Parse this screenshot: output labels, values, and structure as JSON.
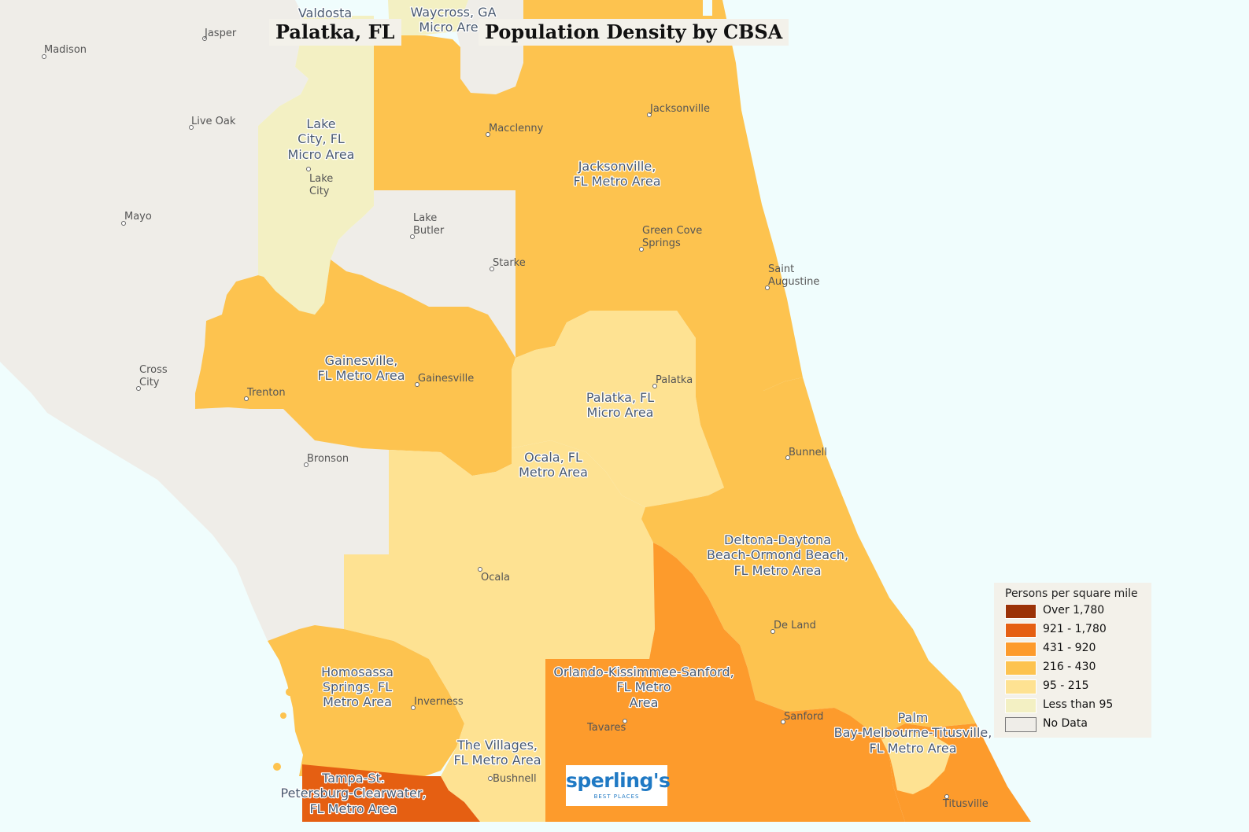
{
  "titles": {
    "location": "Palatka, FL",
    "main": "Population Density by CBSA"
  },
  "colors": {
    "water": "#f0fdfd",
    "no_data": "#efede8",
    "lt95": "#f3f0c3",
    "c95_215": "#fee292",
    "c216_430": "#fdc34f",
    "c431_920": "#fd9b2c",
    "c921_1780": "#e55f12",
    "over1780": "#9b3207"
  },
  "legend": {
    "title": "Persons per square mile",
    "items": [
      {
        "label": "Over 1,780",
        "color": "#9b3207"
      },
      {
        "label": "921 - 1,780",
        "color": "#e55f12"
      },
      {
        "label": "431 - 920",
        "color": "#fd9b2c"
      },
      {
        "label": "216 - 430",
        "color": "#fdc34f"
      },
      {
        "label": "95 - 215",
        "color": "#fee292"
      },
      {
        "label": "Less than 95",
        "color": "#f3f0c3"
      },
      {
        "label": "No Data",
        "color": "#efede8"
      }
    ]
  },
  "regions": {
    "valdosta": "Valdosta",
    "waycross_1": "Waycross, GA",
    "waycross_2": "Micro Are",
    "lake_city_1": "Lake",
    "lake_city_2": "City, FL",
    "lake_city_3": "Micro Area",
    "jacksonville_1": "Jacksonville,",
    "jacksonville_2": "FL Metro Area",
    "gainesville_1": "Gainesville,",
    "gainesville_2": "FL Metro Area",
    "palatka_1": "Palatka, FL",
    "palatka_2": "Micro Area",
    "ocala_1": "Ocala, FL",
    "ocala_2": "Metro Area",
    "deltona_1": "Deltona-Daytona",
    "deltona_2": "Beach-Ormond Beach,",
    "deltona_3": "FL Metro Area",
    "homosassa_1": "Homosassa",
    "homosassa_2": "Springs, FL",
    "homosassa_3": "Metro Area",
    "orlando_1": "Orlando-Kissimmee-Sanford,",
    "orlando_2": "FL Metro",
    "orlando_3": "Area",
    "villages_1": "The Villages,",
    "villages_2": "FL Metro Area",
    "palmbay_1": "Palm",
    "palmbay_2": "Bay-Melbourne-Titusville,",
    "palmbay_3": "FL Metro Area",
    "tampa_1": "Tampa-St.",
    "tampa_2": "Petersburg-Clearwater,",
    "tampa_3": "FL Metro Area"
  },
  "cities": {
    "madison": "Madison",
    "jasper": "Jasper",
    "live_oak": "Live Oak",
    "mayo": "Mayo",
    "cross_city_1": "Cross",
    "cross_city_2": "City",
    "lake_city_1": "Lake",
    "lake_city_2": "City",
    "lake_butler_1": "Lake",
    "lake_butler_2": "Butler",
    "starke": "Starke",
    "macclenny": "Macclenny",
    "jacksonville": "Jacksonville",
    "green_cove_1": "Green Cove",
    "green_cove_2": "Springs",
    "saint_augustine_1": "Saint",
    "saint_augustine_2": "Augustine",
    "trenton": "Trenton",
    "gainesville": "Gainesville",
    "palatka": "Palatka",
    "bronson": "Bronson",
    "bunnell": "Bunnell",
    "ocala": "Ocala",
    "de_land": "De Land",
    "inverness": "Inverness",
    "tavares": "Tavares",
    "sanford": "Sanford",
    "bushnell": "Bushnell",
    "titusville": "Titusville"
  },
  "logo": {
    "word": "sperling's",
    "sub": "BEST PLACES"
  }
}
